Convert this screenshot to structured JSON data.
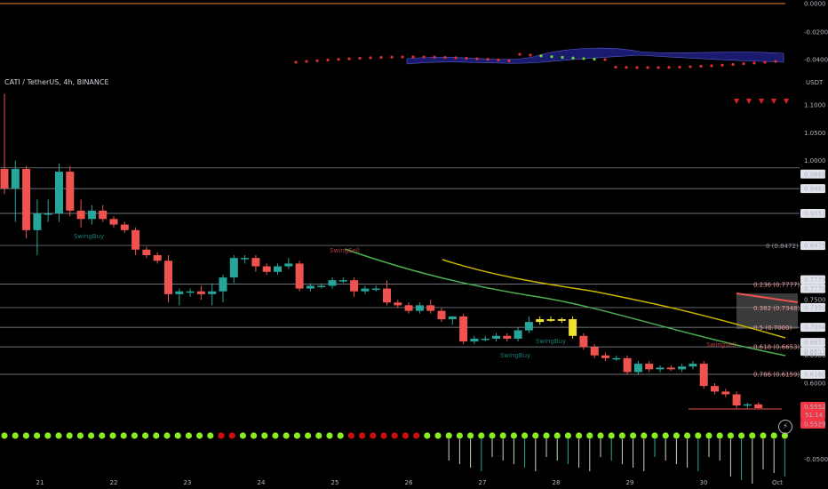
{
  "legend": {
    "symbol": "CATI / TetherUS, 4h, BINANCE"
  },
  "currency": "USDT",
  "osc_axis": [
    "0.0000",
    "-0.0200",
    "-0.0400"
  ],
  "vol_axis": [
    "-0.0500"
  ],
  "price_axis": [
    "1.1000",
    "1.0500",
    "1.0000",
    "0.9869",
    "0.9497",
    "0.9051",
    "0.8475",
    "0.7779",
    "0.7779",
    "0.7500",
    "0.7359",
    "0.7004",
    "0.6653",
    "0.6653",
    "0.6500",
    "0.6160",
    "0.6000"
  ],
  "price_badges": {
    "current": "0.5552",
    "countdown": "51:14",
    "low": "0.5529"
  },
  "x_axis": [
    "21",
    "22",
    "23",
    "24",
    "25",
    "26",
    "27",
    "28",
    "29",
    "30",
    "Oct"
  ],
  "fib_labels": [
    "0 (0.8472)",
    "0.236 (0.7777)",
    "0.382 (0.7348)",
    "0.5 (0.7000)",
    "0.618 (0.6653)",
    "0.786 (0.6159)"
  ],
  "signals": {
    "swing_buy": "SwingBuy",
    "swing_sell": "SwingSell"
  },
  "colors": {
    "up": "#26a69a",
    "down": "#ef5350",
    "yellow": "#f0e030",
    "ema_green": "#4caf50",
    "ema_yellow": "#c8b400",
    "fib": "#ef5350",
    "cloud": "#1a1a6e"
  },
  "chart_data": {
    "type": "candlestick",
    "timeframe": "4h",
    "ylim": [
      0.55,
      1.12
    ],
    "candles": [
      {
        "o": 0.985,
        "h": 1.12,
        "l": 0.94,
        "c": 0.95
      },
      {
        "o": 0.95,
        "h": 1.0,
        "l": 0.89,
        "c": 0.985
      },
      {
        "o": 0.985,
        "h": 0.99,
        "l": 0.86,
        "c": 0.875
      },
      {
        "o": 0.875,
        "h": 0.93,
        "l": 0.83,
        "c": 0.905
      },
      {
        "o": 0.905,
        "h": 0.93,
        "l": 0.89,
        "c": 0.905
      },
      {
        "o": 0.905,
        "h": 0.995,
        "l": 0.89,
        "c": 0.98
      },
      {
        "o": 0.98,
        "h": 0.99,
        "l": 0.9,
        "c": 0.91
      },
      {
        "o": 0.91,
        "h": 0.93,
        "l": 0.88,
        "c": 0.895
      },
      {
        "o": 0.895,
        "h": 0.92,
        "l": 0.885,
        "c": 0.91
      },
      {
        "o": 0.91,
        "h": 0.92,
        "l": 0.89,
        "c": 0.895
      },
      {
        "o": 0.895,
        "h": 0.9,
        "l": 0.88,
        "c": 0.885
      },
      {
        "o": 0.885,
        "h": 0.89,
        "l": 0.87,
        "c": 0.875
      },
      {
        "o": 0.875,
        "h": 0.88,
        "l": 0.83,
        "c": 0.84
      },
      {
        "o": 0.84,
        "h": 0.845,
        "l": 0.825,
        "c": 0.83
      },
      {
        "o": 0.83,
        "h": 0.835,
        "l": 0.815,
        "c": 0.82
      },
      {
        "o": 0.82,
        "h": 0.83,
        "l": 0.745,
        "c": 0.76
      },
      {
        "o": 0.76,
        "h": 0.77,
        "l": 0.74,
        "c": 0.765
      },
      {
        "o": 0.765,
        "h": 0.77,
        "l": 0.755,
        "c": 0.765
      },
      {
        "o": 0.765,
        "h": 0.775,
        "l": 0.75,
        "c": 0.76
      },
      {
        "o": 0.76,
        "h": 0.78,
        "l": 0.74,
        "c": 0.765
      },
      {
        "o": 0.765,
        "h": 0.795,
        "l": 0.745,
        "c": 0.79
      },
      {
        "o": 0.79,
        "h": 0.83,
        "l": 0.78,
        "c": 0.825
      },
      {
        "o": 0.825,
        "h": 0.83,
        "l": 0.815,
        "c": 0.825
      },
      {
        "o": 0.825,
        "h": 0.83,
        "l": 0.8,
        "c": 0.81
      },
      {
        "o": 0.81,
        "h": 0.815,
        "l": 0.795,
        "c": 0.8
      },
      {
        "o": 0.8,
        "h": 0.815,
        "l": 0.795,
        "c": 0.81
      },
      {
        "o": 0.81,
        "h": 0.825,
        "l": 0.805,
        "c": 0.815
      },
      {
        "o": 0.815,
        "h": 0.82,
        "l": 0.765,
        "c": 0.77
      },
      {
        "o": 0.77,
        "h": 0.78,
        "l": 0.765,
        "c": 0.775
      },
      {
        "o": 0.775,
        "h": 0.78,
        "l": 0.77,
        "c": 0.775
      },
      {
        "o": 0.775,
        "h": 0.79,
        "l": 0.77,
        "c": 0.785
      },
      {
        "o": 0.785,
        "h": 0.79,
        "l": 0.78,
        "c": 0.785
      },
      {
        "o": 0.785,
        "h": 0.79,
        "l": 0.755,
        "c": 0.765
      },
      {
        "o": 0.765,
        "h": 0.775,
        "l": 0.76,
        "c": 0.77
      },
      {
        "o": 0.77,
        "h": 0.775,
        "l": 0.765,
        "c": 0.77
      },
      {
        "o": 0.77,
        "h": 0.785,
        "l": 0.74,
        "c": 0.745
      },
      {
        "o": 0.745,
        "h": 0.75,
        "l": 0.735,
        "c": 0.74
      },
      {
        "o": 0.74,
        "h": 0.745,
        "l": 0.725,
        "c": 0.73
      },
      {
        "o": 0.73,
        "h": 0.745,
        "l": 0.725,
        "c": 0.74
      },
      {
        "o": 0.74,
        "h": 0.75,
        "l": 0.725,
        "c": 0.73
      },
      {
        "o": 0.73,
        "h": 0.735,
        "l": 0.71,
        "c": 0.715
      },
      {
        "o": 0.715,
        "h": 0.72,
        "l": 0.705,
        "c": 0.72
      },
      {
        "o": 0.72,
        "h": 0.725,
        "l": 0.67,
        "c": 0.675
      },
      {
        "o": 0.675,
        "h": 0.685,
        "l": 0.67,
        "c": 0.68
      },
      {
        "o": 0.68,
        "h": 0.685,
        "l": 0.675,
        "c": 0.68
      },
      {
        "o": 0.68,
        "h": 0.69,
        "l": 0.675,
        "c": 0.685
      },
      {
        "o": 0.685,
        "h": 0.69,
        "l": 0.675,
        "c": 0.68
      },
      {
        "o": 0.68,
        "h": 0.7,
        "l": 0.675,
        "c": 0.695
      },
      {
        "o": 0.695,
        "h": 0.72,
        "l": 0.69,
        "c": 0.71
      },
      {
        "o": 0.71,
        "h": 0.72,
        "l": 0.705,
        "c": 0.715
      },
      {
        "o": 0.715,
        "h": 0.72,
        "l": 0.71,
        "c": 0.712
      },
      {
        "o": 0.712,
        "h": 0.718,
        "l": 0.708,
        "c": 0.715
      },
      {
        "o": 0.715,
        "h": 0.72,
        "l": 0.68,
        "c": 0.685
      },
      {
        "o": 0.685,
        "h": 0.69,
        "l": 0.66,
        "c": 0.665
      },
      {
        "o": 0.665,
        "h": 0.67,
        "l": 0.645,
        "c": 0.65
      },
      {
        "o": 0.65,
        "h": 0.655,
        "l": 0.64,
        "c": 0.645
      },
      {
        "o": 0.645,
        "h": 0.65,
        "l": 0.64,
        "c": 0.645
      },
      {
        "o": 0.645,
        "h": 0.65,
        "l": 0.615,
        "c": 0.62
      },
      {
        "o": 0.62,
        "h": 0.64,
        "l": 0.615,
        "c": 0.635
      },
      {
        "o": 0.635,
        "h": 0.64,
        "l": 0.62,
        "c": 0.625
      },
      {
        "o": 0.625,
        "h": 0.632,
        "l": 0.62,
        "c": 0.628
      },
      {
        "o": 0.628,
        "h": 0.632,
        "l": 0.622,
        "c": 0.625
      },
      {
        "o": 0.625,
        "h": 0.635,
        "l": 0.62,
        "c": 0.63
      },
      {
        "o": 0.63,
        "h": 0.64,
        "l": 0.625,
        "c": 0.635
      },
      {
        "o": 0.635,
        "h": 0.64,
        "l": 0.59,
        "c": 0.595
      },
      {
        "o": 0.595,
        "h": 0.6,
        "l": 0.58,
        "c": 0.585
      },
      {
        "o": 0.585,
        "h": 0.59,
        "l": 0.575,
        "c": 0.58
      },
      {
        "o": 0.58,
        "h": 0.585,
        "l": 0.555,
        "c": 0.56
      },
      {
        "o": 0.56,
        "h": 0.565,
        "l": 0.555,
        "c": 0.562
      },
      {
        "o": 0.562,
        "h": 0.566,
        "l": 0.556,
        "c": 0.5552
      }
    ]
  }
}
